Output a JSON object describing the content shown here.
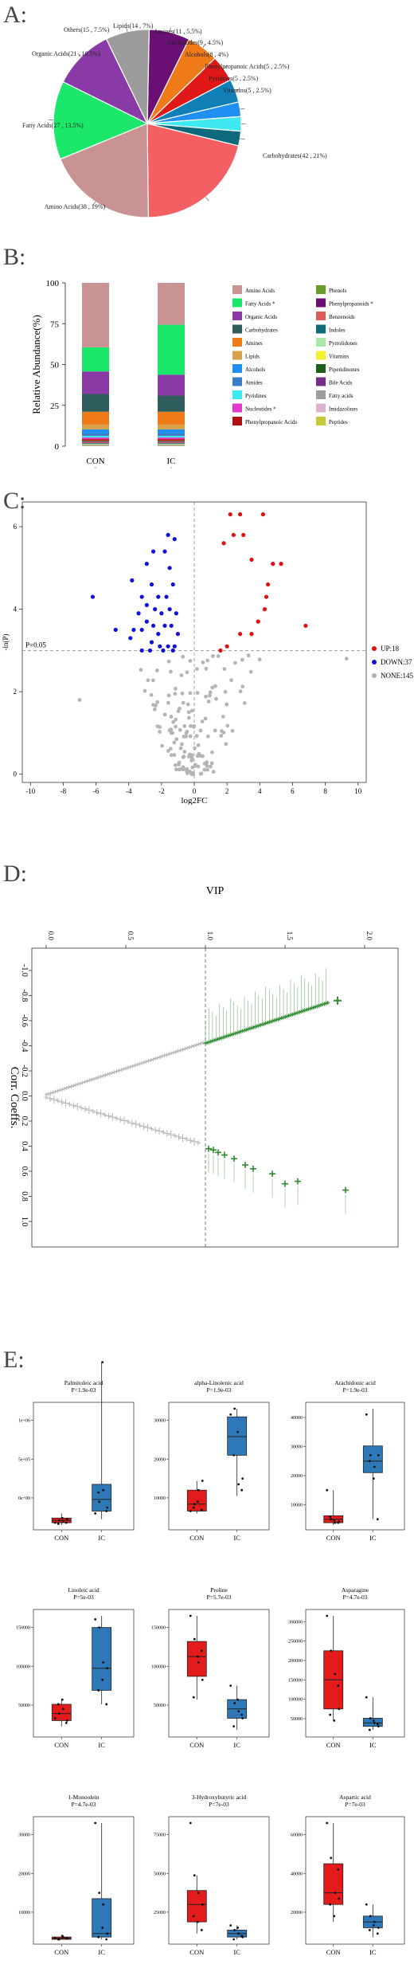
{
  "labels": {
    "a": "A:",
    "b": "B:",
    "c": "C:",
    "d": "D:",
    "e": "E:"
  },
  "chart_data": [
    {
      "type": "pie",
      "id": "A",
      "slices": [
        {
          "label": "Lipids(14 , 7%)",
          "value": 7,
          "color": "#6a0f74"
        },
        {
          "label": "Amines(11 , 5.5%)",
          "value": 5.5,
          "color": "#ef7a18"
        },
        {
          "label": "Nucleotides(9 , 4.5%)",
          "value": 4.5,
          "color": "#e01818"
        },
        {
          "label": "Alcohols(8 , 4%)",
          "value": 4,
          "color": "#0f7fb6"
        },
        {
          "label": "Phenylpropanoic Acids(5 , 2.5%)",
          "value": 2.5,
          "color": "#1f8ff2"
        },
        {
          "label": "Pyridines(5 , 2.5%)",
          "value": 2.5,
          "color": "#3fe9f0"
        },
        {
          "label": "Vitamins(5 , 2.5%)",
          "value": 2.5,
          "color": "#0d6a7c"
        },
        {
          "label": "Carbohydrates(42 , 21%)",
          "value": 21,
          "color": "#f35f63"
        },
        {
          "label": "Amino Acids(38 , 19%)",
          "value": 19,
          "color": "#c99293"
        },
        {
          "label": "Fatty Acids(27 , 13.5%)",
          "value": 13.5,
          "color": "#1be86a"
        },
        {
          "label": "Organic Acids(21 , 10.5%)",
          "value": 10.5,
          "color": "#8a3aa6"
        },
        {
          "label": "Others(15 , 7.5%)",
          "value": 7.5,
          "color": "#9c9c9c"
        }
      ]
    },
    {
      "type": "bar",
      "id": "B",
      "stacked": true,
      "ylabel": "Relative Abundance(%)",
      "categories": [
        "CON",
        "IC"
      ],
      "yticks": [
        "0",
        "25",
        "50",
        "75",
        "100"
      ],
      "ylim": [
        0,
        100
      ],
      "series": [
        {
          "name": "Amino Acids",
          "color": "#c99293",
          "values": [
            40,
            26
          ]
        },
        {
          "name": "Fatty Acids *",
          "color": "#1be86a",
          "values": [
            15,
            31
          ]
        },
        {
          "name": "Organic Acids",
          "color": "#8a3aa6",
          "values": [
            14,
            13
          ]
        },
        {
          "name": "Carbohydrates",
          "color": "#2f5d5d",
          "values": [
            11,
            10
          ]
        },
        {
          "name": "Amines",
          "color": "#ef7a18",
          "values": [
            8,
            8
          ]
        },
        {
          "name": "Lipids",
          "color": "#d8a24a",
          "values": [
            3,
            3
          ]
        },
        {
          "name": "Alcohols",
          "color": "#1f8ff2",
          "values": [
            2.5,
            2.5
          ]
        },
        {
          "name": "Amides",
          "color": "#3c7dc8",
          "values": [
            1.5,
            1.5
          ]
        },
        {
          "name": "Pyridines",
          "color": "#3fe9f0",
          "values": [
            1,
            1
          ]
        },
        {
          "name": "Nucleotides *",
          "color": "#e03ac6",
          "values": [
            1,
            1
          ]
        },
        {
          "name": "Phenylpropanoic Acids",
          "color": "#b01010",
          "values": [
            1,
            1
          ]
        },
        {
          "name": "Phenols",
          "color": "#6a9a2a",
          "values": [
            0.5,
            0.5
          ]
        },
        {
          "name": "Phenylpropanoids *",
          "color": "#6a0f74",
          "values": [
            0.5,
            0.5
          ]
        },
        {
          "name": "Benzenoids",
          "color": "#e05a5a",
          "values": [
            0.5,
            0.5
          ]
        },
        {
          "name": "Indoles",
          "color": "#0d6a7c",
          "values": [
            0.5,
            0.5
          ]
        },
        {
          "name": "Pyrrolidones",
          "color": "#a8e8a8",
          "values": [
            0.3,
            0.3
          ]
        },
        {
          "name": "Vitamins",
          "color": "#f2f22a",
          "values": [
            0.3,
            0.3
          ]
        },
        {
          "name": "Piperidinones",
          "color": "#1a5f1a",
          "values": [
            0.2,
            0.2
          ]
        },
        {
          "name": "Bile Acids",
          "color": "#7a2a8a",
          "values": [
            0.2,
            0.2
          ]
        },
        {
          "name": "Fatty acids",
          "color": "#9c9c9c",
          "values": [
            0.2,
            0.2
          ]
        },
        {
          "name": "Imidazolines",
          "color": "#e0b0d0",
          "values": [
            0.1,
            0.1
          ]
        },
        {
          "name": "Peptides",
          "color": "#c9c936",
          "values": [
            0.1,
            0.1
          ]
        }
      ]
    },
    {
      "type": "scatter",
      "id": "C",
      "xlabel": "log2FC",
      "ylabel": "-ln(P)",
      "xlim": [
        -10.5,
        10.5
      ],
      "ylim": [
        -0.2,
        6.6
      ],
      "xticks": [
        -10,
        -8,
        -6,
        -4,
        -2,
        0,
        2,
        4,
        6,
        8,
        10
      ],
      "yticks": [
        0,
        2,
        4,
        6
      ],
      "threshold_label": "P=0.05",
      "legend": [
        {
          "label": "UP:18",
          "color": "#e01010"
        },
        {
          "label": "DOWN:37",
          "color": "#1010d8"
        },
        {
          "label": "NONE:145",
          "color": "#b0b0b0"
        }
      ],
      "up": [
        [
          2.2,
          6.3
        ],
        [
          2.8,
          6.3
        ],
        [
          4.2,
          6.3
        ],
        [
          2.4,
          5.8
        ],
        [
          3.0,
          5.8
        ],
        [
          1.8,
          5.6
        ],
        [
          3.5,
          5.2
        ],
        [
          4.8,
          5.1
        ],
        [
          5.3,
          5.1
        ],
        [
          4.5,
          4.6
        ],
        [
          4.4,
          4.3
        ],
        [
          4.3,
          4.0
        ],
        [
          3.9,
          3.7
        ],
        [
          6.8,
          3.6
        ],
        [
          2.8,
          3.4
        ],
        [
          3.5,
          3.4
        ],
        [
          2.0,
          3.1
        ],
        [
          1.6,
          3.0
        ]
      ],
      "down": [
        [
          -1.6,
          5.8
        ],
        [
          -1.2,
          5.7
        ],
        [
          -2.5,
          5.4
        ],
        [
          -1.8,
          5.4
        ],
        [
          -2.9,
          5.1
        ],
        [
          -1.5,
          5.0
        ],
        [
          -3.8,
          4.7
        ],
        [
          -2.6,
          4.6
        ],
        [
          -1.3,
          4.6
        ],
        [
          -6.2,
          4.3
        ],
        [
          -3.2,
          4.3
        ],
        [
          -2.2,
          4.3
        ],
        [
          -1.7,
          4.3
        ],
        [
          -2.9,
          4.1
        ],
        [
          -2.4,
          4.0
        ],
        [
          -1.5,
          4.0
        ],
        [
          -3.4,
          3.9
        ],
        [
          -2.0,
          3.9
        ],
        [
          -1.1,
          3.9
        ],
        [
          -2.9,
          3.7
        ],
        [
          -2.5,
          3.6
        ],
        [
          -1.8,
          3.6
        ],
        [
          -1.4,
          3.6
        ],
        [
          -4.8,
          3.5
        ],
        [
          -3.7,
          3.5
        ],
        [
          -3.2,
          3.5
        ],
        [
          -2.2,
          3.4
        ],
        [
          -1.0,
          3.4
        ],
        [
          -3.9,
          3.3
        ],
        [
          -2.6,
          3.2
        ],
        [
          -2.1,
          3.1
        ],
        [
          -1.6,
          3.1
        ],
        [
          -1.2,
          3.1
        ],
        [
          -3.2,
          3.0
        ],
        [
          -2.7,
          3.0
        ],
        [
          -1.9,
          3.0
        ],
        [
          -1.3,
          3.0
        ]
      ],
      "none_count": 145
    },
    {
      "type": "scatter",
      "id": "D",
      "xlabel": "VIP",
      "ylabel": "Corr. Coeffs.",
      "xticks": [
        "0.0",
        "0.5",
        "1.0",
        "1.5",
        "2.0"
      ],
      "yticks": [
        "-1.0",
        "-0.8",
        "-0.6",
        "-0.4",
        "-0.2",
        "0.0",
        "0.2",
        "0.4",
        "0.6",
        "0.8",
        "1.0"
      ]
    },
    {
      "type": "box",
      "id": "E",
      "categories": [
        "CON",
        "IC"
      ],
      "panels": [
        {
          "title": "Palmitoleic acid",
          "p": "P=1.9e-03",
          "yticks": [
            "0e+00",
            "5e+05",
            "1e+06"
          ],
          "con": [
            0,
            0.02,
            0.04,
            0.06,
            0.1
          ],
          "ic": [
            0.05,
            0.12,
            0.22,
            0.35,
            1.4
          ],
          "con_pts": [
            0.02,
            0.04,
            0.03,
            0.05,
            0.01,
            0.06,
            0.02
          ],
          "ic_pts": [
            0.1,
            0.2,
            0.3,
            0.15,
            0.28,
            1.4,
            0.12
          ]
        },
        {
          "title": "alpha-Linolenic acid",
          "p": "P=1.9e-03",
          "yticks": [
            "10000",
            "20000",
            "30000"
          ],
          "con": [
            0.1,
            0.12,
            0.18,
            0.3,
            0.38
          ],
          "ic": [
            0.25,
            0.6,
            0.76,
            0.93,
            1.0
          ],
          "con_pts": [
            0.12,
            0.18,
            0.3,
            0.38,
            0.15,
            0.2,
            0.13
          ],
          "ic_pts": [
            0.95,
            1.0,
            0.35,
            0.4,
            0.6,
            0.8,
            0.3
          ]
        },
        {
          "title": "Arachidonic acid",
          "p": "P=1.9e-03",
          "yticks": [
            "10000",
            "20000",
            "30000",
            "40000"
          ],
          "con": [
            0.0,
            0.02,
            0.05,
            0.08,
            0.3
          ],
          "ic": [
            0.05,
            0.45,
            0.55,
            0.68,
            1.0
          ],
          "con_pts": [
            0.3,
            0.05,
            0.02,
            0.03,
            0.07,
            0.04,
            0.02
          ],
          "ic_pts": [
            0.95,
            0.6,
            0.5,
            0.6,
            0.55,
            0.4,
            0.05
          ]
        },
        {
          "title": "Linoleic acid",
          "p": "P=5e-03",
          "yticks": [
            "50000",
            "100000",
            "150000"
          ],
          "con": [
            0.05,
            0.1,
            0.16,
            0.24,
            0.28
          ],
          "ic": [
            0.24,
            0.36,
            0.55,
            0.9,
            1.0
          ],
          "con_pts": [
            0.12,
            0.16,
            0.2,
            0.1,
            0.24,
            0.28,
            0.08
          ],
          "ic_pts": [
            0.97,
            0.9,
            0.6,
            0.55,
            0.36,
            0.45,
            0.24
          ]
        },
        {
          "title": "Proline",
          "p": "P=5.7e-03",
          "yticks": [
            "50000",
            "100000",
            "150000"
          ],
          "con": [
            0.28,
            0.48,
            0.65,
            0.78,
            1.0
          ],
          "ic": [
            0.02,
            0.12,
            0.2,
            0.28,
            0.4
          ],
          "con_pts": [
            1.0,
            0.8,
            0.6,
            0.45,
            0.3,
            0.65,
            0.7
          ],
          "ic_pts": [
            0.4,
            0.25,
            0.18,
            0.12,
            0.05,
            0.28,
            0.15
          ]
        },
        {
          "title": "Asparagine",
          "p": "P=4.7e-03",
          "yticks": [
            "50000",
            "100000",
            "150000",
            "200000",
            "250000",
            "300000"
          ],
          "con": [
            0.1,
            0.2,
            0.45,
            0.7,
            1.0
          ],
          "ic": [
            0.02,
            0.05,
            0.08,
            0.12,
            0.3
          ],
          "con_pts": [
            1.0,
            0.7,
            0.5,
            0.2,
            0.15,
            0.1,
            0.4
          ],
          "ic_pts": [
            0.3,
            0.12,
            0.08,
            0.05,
            0.02,
            0.1,
            0.07
          ]
        },
        {
          "title": "1-Monoolein",
          "p": "P=4.7e-03",
          "yticks": [
            "10000",
            "20000",
            "30000"
          ],
          "con": [
            0,
            0.0,
            0.01,
            0.02,
            0.03
          ],
          "ic": [
            0.0,
            0.02,
            0.05,
            0.35,
            1.0
          ],
          "con_pts": [
            0.01,
            0.0,
            0.02,
            0.01,
            0.0,
            0.03,
            0.01
          ],
          "ic_pts": [
            1.0,
            0.4,
            0.3,
            0.05,
            0.02,
            0.1,
            0.0
          ]
        },
        {
          "title": "3-Hydroxybutyric acid",
          "p": "P=7e-03",
          "yticks": [
            "25000",
            "50000",
            "75000"
          ],
          "con": [
            0.05,
            0.15,
            0.3,
            0.42,
            0.55
          ],
          "ic": [
            0.0,
            0.02,
            0.05,
            0.08,
            0.12
          ],
          "con_pts": [
            1.0,
            0.55,
            0.4,
            0.3,
            0.2,
            0.15,
            0.08
          ],
          "ic_pts": [
            0.12,
            0.08,
            0.05,
            0.02,
            0.0,
            0.1,
            0.03
          ]
        },
        {
          "title": "Aspartic acid",
          "p": "P=7e-03",
          "yticks": [
            "20000",
            "40000",
            "60000"
          ],
          "con": [
            0.15,
            0.3,
            0.4,
            0.65,
            1.0
          ],
          "ic": [
            0.02,
            0.1,
            0.15,
            0.2,
            0.3
          ],
          "con_pts": [
            1.0,
            0.7,
            0.4,
            0.35,
            0.3,
            0.2,
            0.6
          ],
          "ic_pts": [
            0.3,
            0.2,
            0.15,
            0.1,
            0.08,
            0.12,
            0.05
          ]
        }
      ]
    }
  ]
}
